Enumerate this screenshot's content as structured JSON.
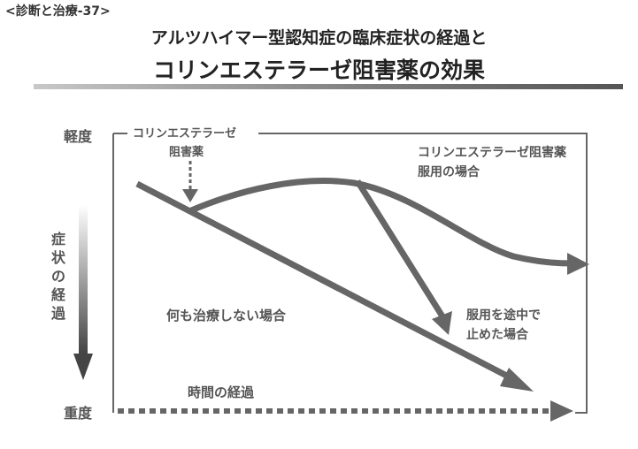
{
  "header": {
    "section_tag": "<診断と治療-37>",
    "title_line1": "アルツハイマー型認知症の臨床症状の経過と",
    "title_line2": "コリンエステラーゼ阻害薬の効果"
  },
  "axes": {
    "y_top": "軽度",
    "y_bottom": "重度",
    "y_label_chars": [
      "症",
      "状",
      "の",
      "経",
      "過"
    ],
    "x_label": "時間の経過"
  },
  "annotations": {
    "drug_start_line1": "コリンエステラーゼ",
    "drug_start_line2": "阻害薬",
    "with_drug_line1": "コリンエステラーゼ阻害薬",
    "with_drug_line2": "服用の場合",
    "no_treatment": "何も治療しない場合",
    "stopped_line1": "服用を途中で",
    "stopped_line2": "止めた場合"
  },
  "colors": {
    "line": "#666666",
    "text": "#555555",
    "title": "#222222"
  }
}
